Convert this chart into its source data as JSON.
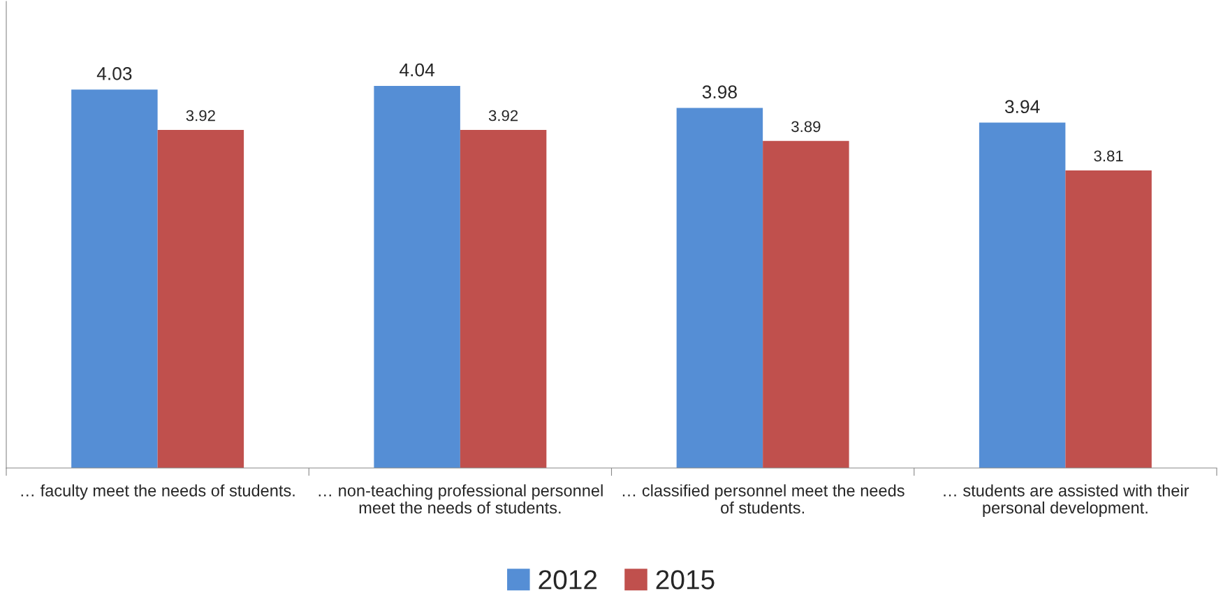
{
  "chart_data": {
    "type": "bar",
    "categories": [
      "… faculty meet the needs of students.",
      "… non-teaching professional personnel meet the needs of students.",
      "… classified personnel meet the needs of students.",
      "… students are assisted with their personal development."
    ],
    "series": [
      {
        "name": "2012",
        "color": "#558ed5",
        "values": [
          4.03,
          4.04,
          3.98,
          3.94
        ]
      },
      {
        "name": "2015",
        "color": "#c0504d",
        "values": [
          3.92,
          3.92,
          3.89,
          3.81
        ]
      }
    ],
    "ylim": [
      3,
      4.27
    ],
    "tick_labels": "x",
    "data_labels": true,
    "legend": "bottom",
    "grid": false
  }
}
